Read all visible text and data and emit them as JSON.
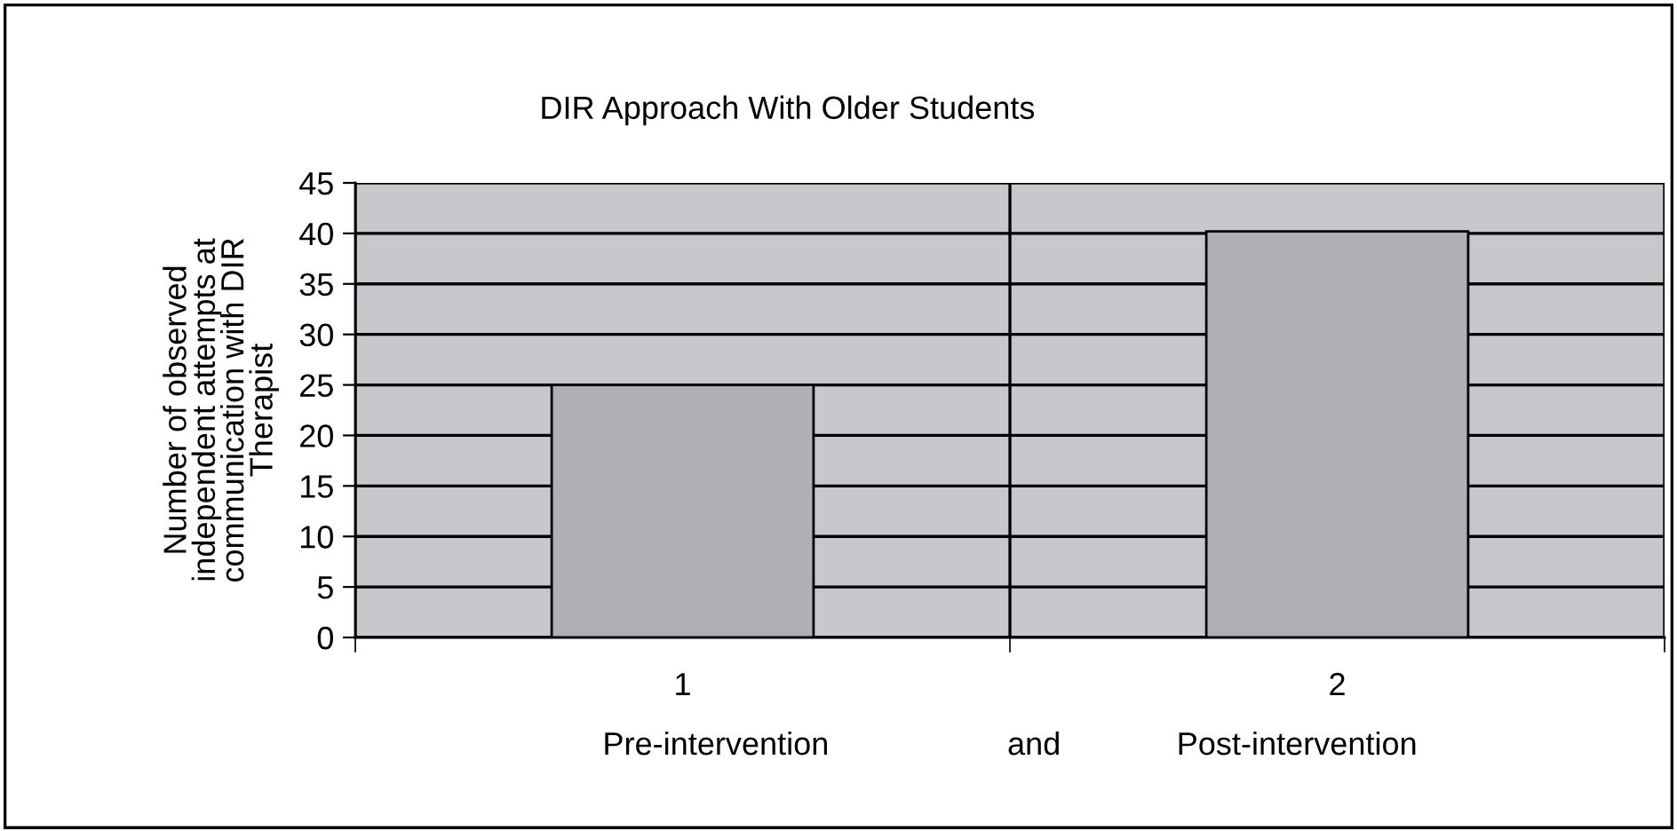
{
  "chart_data": {
    "type": "bar",
    "title": "DIR Approach With Older Students",
    "xlabel": "Pre-intervention                    and             Post-intervention",
    "ylabel": "Number of observed\nindependent attempts at\ncommunication with DIR\nTherapist",
    "categories": [
      "1",
      "2"
    ],
    "values": [
      25,
      40.2
    ],
    "color": "#b0b0b4",
    "ylim": [
      0,
      45
    ],
    "yticks": [
      0,
      5,
      10,
      15,
      20,
      25,
      30,
      35,
      40,
      45
    ],
    "grid": true,
    "legend": false
  }
}
